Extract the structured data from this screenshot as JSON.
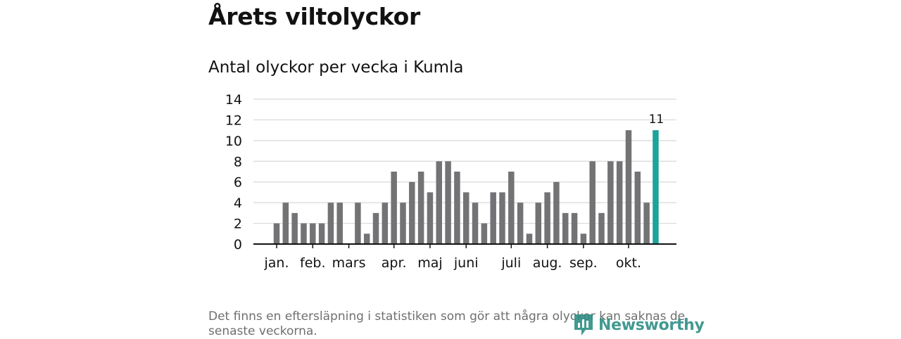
{
  "title": "Årets viltolyckor",
  "chart_data": {
    "type": "bar",
    "title": "Antal olyckor per vecka i Kumla",
    "xlabel": "",
    "ylabel": "",
    "ylim": [
      0,
      14
    ],
    "yticks": [
      0,
      2,
      4,
      6,
      8,
      10,
      12,
      14
    ],
    "grid": true,
    "month_labels": [
      {
        "label": "jan.",
        "week": 1
      },
      {
        "label": "feb.",
        "week": 5
      },
      {
        "label": "mars",
        "week": 9
      },
      {
        "label": "apr.",
        "week": 14
      },
      {
        "label": "maj",
        "week": 18
      },
      {
        "label": "juni",
        "week": 22
      },
      {
        "label": "juli",
        "week": 27
      },
      {
        "label": "aug.",
        "week": 31
      },
      {
        "label": "sep.",
        "week": 35
      },
      {
        "label": "okt.",
        "week": 40
      }
    ],
    "weeks": [
      1,
      2,
      3,
      4,
      5,
      6,
      7,
      8,
      9,
      10,
      11,
      12,
      13,
      14,
      15,
      16,
      17,
      18,
      19,
      20,
      21,
      22,
      23,
      24,
      25,
      26,
      27,
      28,
      29,
      30,
      31,
      32,
      33,
      34,
      35,
      36,
      37,
      38,
      39,
      40,
      41,
      42,
      43
    ],
    "values": [
      2,
      4,
      3,
      2,
      2,
      2,
      4,
      4,
      0,
      4,
      1,
      3,
      4,
      7,
      4,
      6,
      7,
      5,
      8,
      8,
      7,
      5,
      4,
      2,
      5,
      5,
      7,
      4,
      1,
      4,
      5,
      6,
      3,
      3,
      1,
      8,
      3,
      8,
      8,
      11,
      7,
      4,
      11
    ],
    "highlight": {
      "week": 43,
      "value": 11,
      "label": "11"
    },
    "colors": {
      "bar": "#737275",
      "highlight": "#1ba39c",
      "grid": "#d9d9d9",
      "axis": "#121212"
    }
  },
  "footnote": "Det finns en eftersläpning i statistiken som gör att några olyckor kan saknas de senaste veckorna.",
  "logo": {
    "text": "Newsworthy",
    "icon": "newsworthy-chart-icon"
  }
}
